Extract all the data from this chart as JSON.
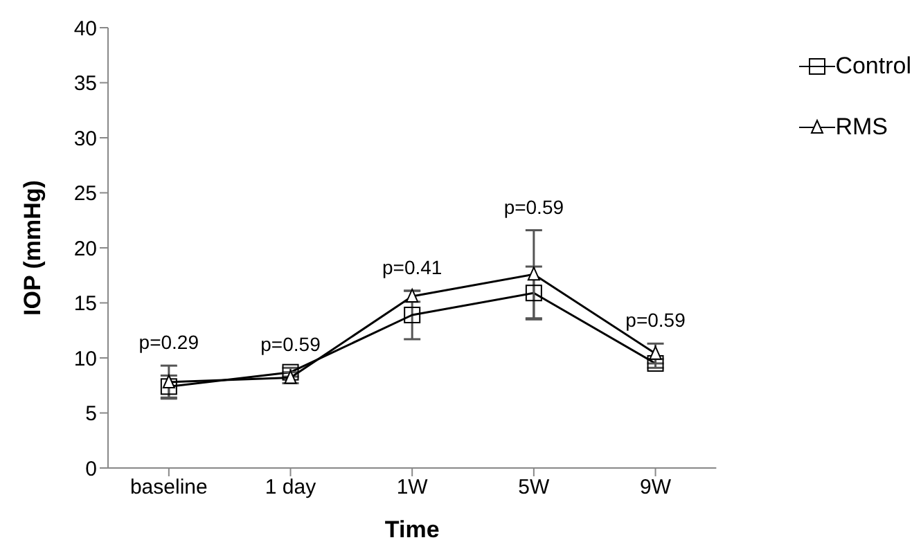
{
  "chart_data": {
    "type": "line",
    "xlabel": "Time",
    "ylabel": "IOP (mmHg)",
    "categories": [
      "baseline",
      "1 day",
      "1W",
      "5W",
      "9W"
    ],
    "series": [
      {
        "name": "Control",
        "color": "#000000",
        "marker": "square",
        "values": [
          7.4,
          8.7,
          13.9,
          15.9,
          9.5
        ],
        "errors": [
          1.0,
          0.4,
          2.2,
          2.4,
          0.4
        ]
      },
      {
        "name": "RMS",
        "color": "#000000",
        "marker": "triangle",
        "values": [
          7.8,
          8.2,
          15.6,
          17.6,
          10.4
        ],
        "errors": [
          1.5,
          0.5,
          0.5,
          4.0,
          0.9
        ]
      }
    ],
    "ylim": [
      0,
      40
    ],
    "yticks": [
      0,
      5,
      10,
      15,
      20,
      25,
      30,
      35,
      40
    ],
    "grid": false,
    "legend": "top right",
    "annotations": [
      "p=0.29",
      "p=0.59",
      "p=0.41",
      "p=0.59",
      "p=0.59"
    ]
  }
}
